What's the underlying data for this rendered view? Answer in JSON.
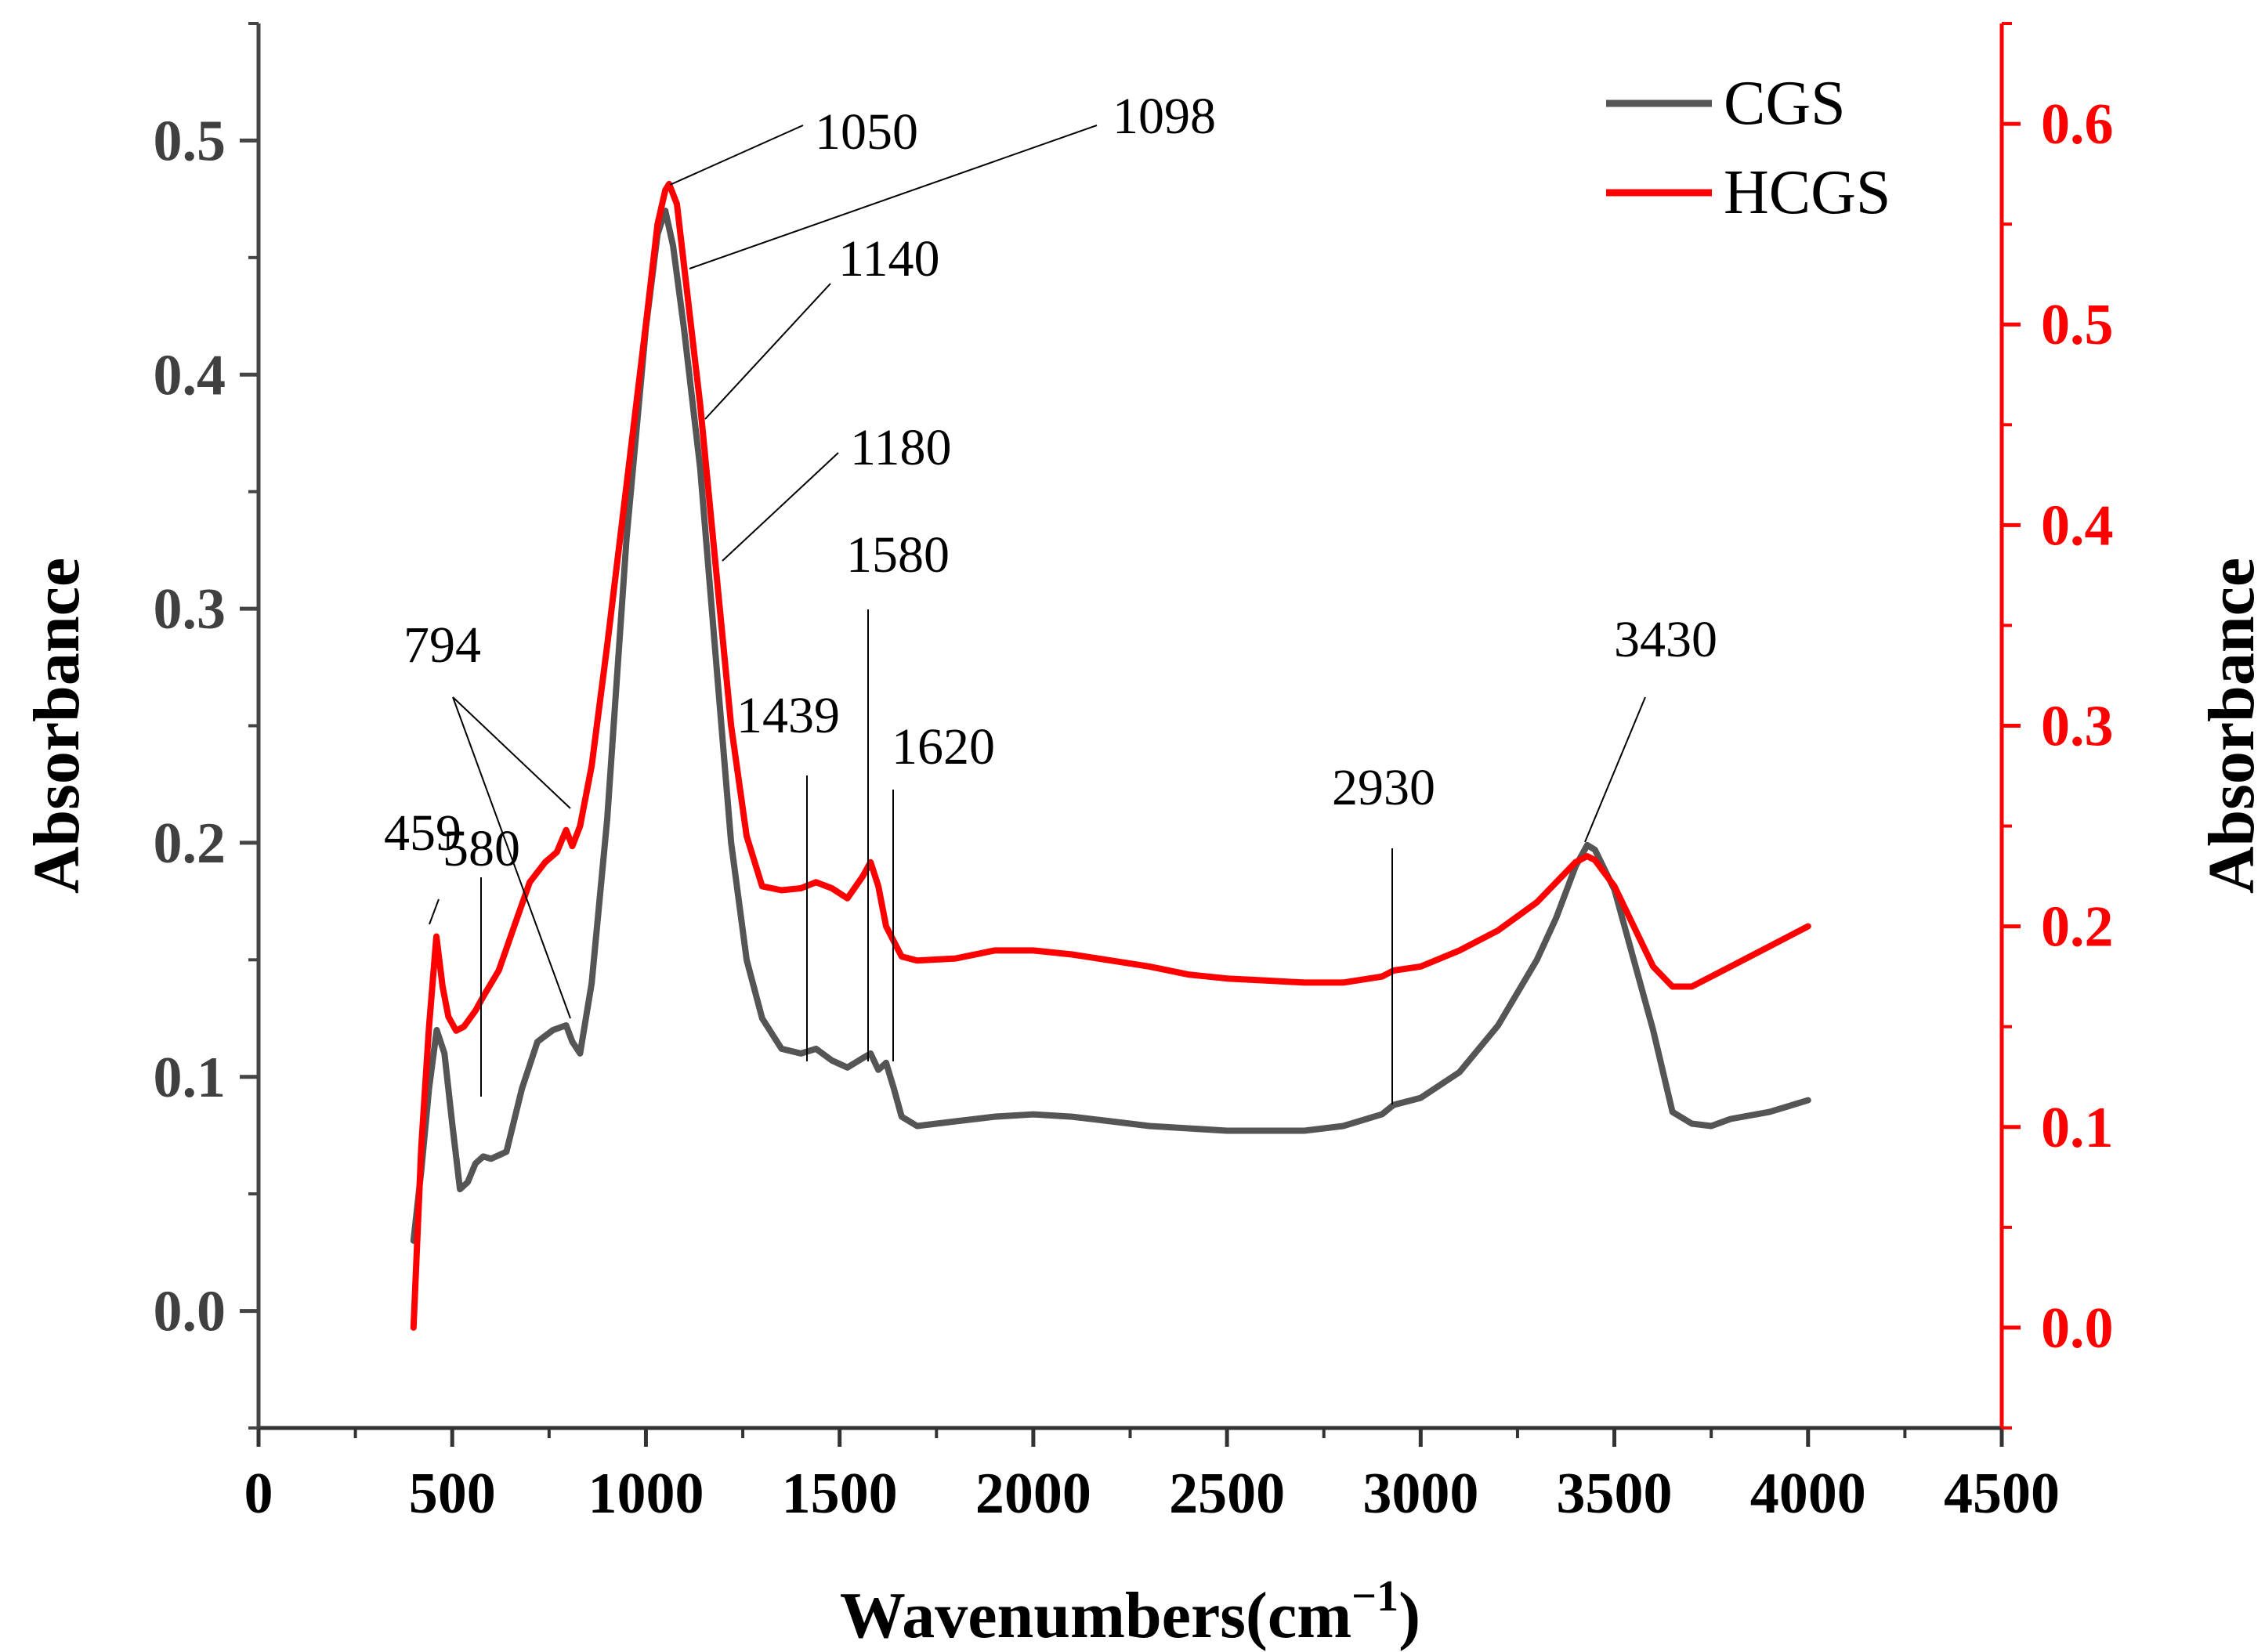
{
  "chart_data": {
    "type": "line",
    "title": "",
    "xlabel": "Wavenumbers(cm",
    "xlabel_sup": "−1",
    "xlabel_close": ")",
    "ylabel_left": "Absorbance",
    "ylabel_right": "Absorbance",
    "xlim": [
      0,
      4500
    ],
    "ylim_left": [
      -0.05,
      0.55
    ],
    "ylim_right": [
      -0.05,
      0.65
    ],
    "x_ticks": [
      0,
      500,
      1000,
      1500,
      2000,
      2500,
      3000,
      3500,
      4000,
      4500
    ],
    "x_tick_labels": [
      "0",
      "500",
      "1000",
      "1500",
      "2000",
      "2500",
      "3000",
      "3500",
      "4000",
      "4500"
    ],
    "y_left_ticks": [
      0.0,
      0.1,
      0.2,
      0.3,
      0.4,
      0.5
    ],
    "y_left_tick_labels": [
      "0.0",
      "0.1",
      "0.2",
      "0.3",
      "0.4",
      "0.5"
    ],
    "y_right_ticks": [
      0.0,
      0.1,
      0.2,
      0.3,
      0.4,
      0.5,
      0.6
    ],
    "y_right_tick_labels": [
      "0.0",
      "0.1",
      "0.2",
      "0.3",
      "0.4",
      "0.5",
      "0.6"
    ],
    "legend_position": "top-right",
    "colors": {
      "left_axis": "#000000",
      "right_axis": "#ff0000",
      "tick_label_left": "#404040"
    },
    "series": [
      {
        "name": "CGS",
        "axis": "left",
        "color": "#555555",
        "x": [
          400,
          420,
          440,
          460,
          480,
          500,
          520,
          540,
          560,
          580,
          600,
          640,
          680,
          720,
          760,
          794,
          810,
          830,
          860,
          900,
          950,
          1000,
          1030,
          1050,
          1070,
          1098,
          1140,
          1180,
          1220,
          1260,
          1300,
          1350,
          1400,
          1439,
          1480,
          1520,
          1560,
          1580,
          1600,
          1620,
          1640,
          1660,
          1700,
          1800,
          1900,
          2000,
          2100,
          2200,
          2300,
          2400,
          2500,
          2600,
          2700,
          2800,
          2900,
          2930,
          3000,
          3100,
          3200,
          3300,
          3350,
          3400,
          3430,
          3450,
          3500,
          3550,
          3600,
          3650,
          3700,
          3750,
          3800,
          3900,
          4000
        ],
        "y": [
          0.03,
          0.06,
          0.095,
          0.12,
          0.11,
          0.08,
          0.052,
          0.055,
          0.063,
          0.066,
          0.065,
          0.068,
          0.095,
          0.115,
          0.12,
          0.122,
          0.115,
          0.11,
          0.14,
          0.21,
          0.33,
          0.42,
          0.46,
          0.47,
          0.455,
          0.42,
          0.36,
          0.28,
          0.2,
          0.15,
          0.125,
          0.112,
          0.11,
          0.112,
          0.107,
          0.104,
          0.108,
          0.11,
          0.103,
          0.106,
          0.095,
          0.083,
          0.079,
          0.081,
          0.083,
          0.084,
          0.083,
          0.081,
          0.079,
          0.078,
          0.077,
          0.077,
          0.077,
          0.079,
          0.084,
          0.088,
          0.091,
          0.102,
          0.122,
          0.15,
          0.168,
          0.19,
          0.199,
          0.197,
          0.18,
          0.15,
          0.12,
          0.085,
          0.08,
          0.079,
          0.082,
          0.085,
          0.09
        ]
      },
      {
        "name": "HCGS",
        "axis": "right",
        "color": "#ff0000",
        "x": [
          400,
          420,
          440,
          459,
          475,
          490,
          510,
          530,
          560,
          580,
          620,
          660,
          700,
          740,
          770,
          794,
          810,
          830,
          860,
          900,
          950,
          1000,
          1030,
          1050,
          1060,
          1080,
          1098,
          1140,
          1180,
          1220,
          1260,
          1300,
          1350,
          1400,
          1439,
          1480,
          1520,
          1560,
          1580,
          1600,
          1620,
          1660,
          1700,
          1800,
          1900,
          2000,
          2100,
          2200,
          2300,
          2400,
          2500,
          2600,
          2700,
          2800,
          2900,
          2930,
          3000,
          3100,
          3200,
          3300,
          3350,
          3400,
          3430,
          3450,
          3500,
          3550,
          3600,
          3650,
          3700,
          3750,
          3800,
          3900,
          4000
        ],
        "y": [
          0.0,
          0.09,
          0.15,
          0.195,
          0.17,
          0.155,
          0.148,
          0.15,
          0.158,
          0.165,
          0.178,
          0.2,
          0.222,
          0.232,
          0.237,
          0.248,
          0.24,
          0.25,
          0.28,
          0.34,
          0.42,
          0.5,
          0.55,
          0.567,
          0.57,
          0.56,
          0.53,
          0.46,
          0.38,
          0.3,
          0.245,
          0.22,
          0.218,
          0.219,
          0.222,
          0.219,
          0.214,
          0.225,
          0.232,
          0.22,
          0.2,
          0.185,
          0.183,
          0.184,
          0.188,
          0.188,
          0.186,
          0.183,
          0.18,
          0.176,
          0.174,
          0.173,
          0.172,
          0.172,
          0.175,
          0.178,
          0.18,
          0.188,
          0.198,
          0.212,
          0.222,
          0.232,
          0.235,
          0.233,
          0.22,
          0.2,
          0.18,
          0.17,
          0.17,
          0.175,
          0.18,
          0.19,
          0.2
        ]
      }
    ],
    "annotations": [
      {
        "text": "459"
      },
      {
        "text": "580"
      },
      {
        "text": "794"
      },
      {
        "text": "1050"
      },
      {
        "text": "1098"
      },
      {
        "text": "1140"
      },
      {
        "text": "1180"
      },
      {
        "text": "1580"
      },
      {
        "text": "1439"
      },
      {
        "text": "1620"
      },
      {
        "text": "2930"
      },
      {
        "text": "3430"
      }
    ]
  }
}
